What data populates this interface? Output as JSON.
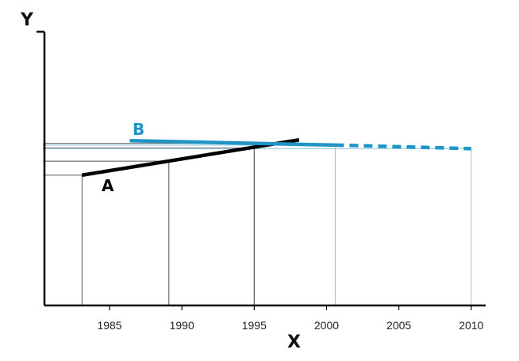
{
  "chart_data": {
    "type": "line",
    "xlabel": "X",
    "ylabel": "Y",
    "xlim": [
      1980.5,
      2011
    ],
    "ylim": [
      0,
      10
    ],
    "xticks": [
      1985,
      1990,
      1995,
      2000,
      2005,
      2010
    ],
    "xtick_labels": [
      "1985",
      "1990",
      "1995",
      "2000",
      "2005",
      "2010"
    ],
    "grid": false,
    "series": [
      {
        "name": "A",
        "color": "#000000",
        "style": "solid",
        "x": [
          1983.1,
          1998.1
        ],
        "y": [
          4.76,
          6.05
        ]
      },
      {
        "name": "B",
        "color": "#1e95c5",
        "style": "solid",
        "x": [
          1986.4,
          2000.6
        ],
        "y": [
          6.02,
          5.86
        ]
      },
      {
        "name": "B-projection",
        "color": "#1e95c5",
        "style": "dashed",
        "x": [
          2000.6,
          2010.0
        ],
        "y": [
          5.86,
          5.73
        ]
      }
    ],
    "reference_lines": [
      {
        "x": 1983.1,
        "y": 4.76,
        "color": "#555555"
      },
      {
        "x": 1989.1,
        "y": 5.27,
        "color": "#555555"
      },
      {
        "x": 1995.0,
        "y": 5.75,
        "color": "#555555"
      },
      {
        "x": 1995.0,
        "y": 5.92,
        "color": "#555555"
      },
      {
        "x": 2000.6,
        "y": 5.86,
        "color": "#8fc7e0"
      },
      {
        "x": 2010.0,
        "y": 5.73,
        "color": "#8fc7e0"
      }
    ]
  }
}
